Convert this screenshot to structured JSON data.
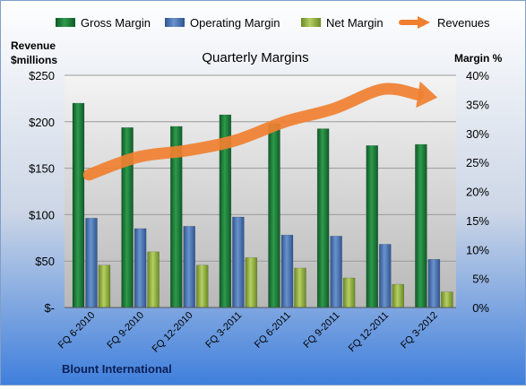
{
  "company": "Blount International",
  "colors": {
    "gross": "#1f7a3a",
    "operating": "#4a73b0",
    "net": "#8fae3d",
    "revenue": "#f08030"
  },
  "chart_data": {
    "type": "bar",
    "title": "Quarterly Margins",
    "left_axis_label_line1": "Revenue",
    "left_axis_label_line2": "$millions",
    "right_axis_label": "Margin %",
    "categories": [
      "FQ 6-2010",
      "FQ 9-2010",
      "FQ 12-2010",
      "FQ 3-2011",
      "FQ 6-2011",
      "FQ 9-2011",
      "FQ 12-2011",
      "FQ 3-2012"
    ],
    "left_ticks": [
      "$-",
      "$50",
      "$100",
      "$150",
      "$200",
      "$250"
    ],
    "right_ticks": [
      "0%",
      "5%",
      "10%",
      "15%",
      "20%",
      "25%",
      "30%",
      "35%",
      "40%"
    ],
    "ylim_left": [
      0,
      250
    ],
    "ylim_right": [
      0,
      40
    ],
    "grid": true,
    "legend_position": "top",
    "series": [
      {
        "name": "Gross Margin",
        "kind": "bar",
        "axis": "right",
        "values": [
          35.2,
          31.0,
          31.2,
          33.2,
          31.7,
          30.8,
          27.9,
          28.1
        ]
      },
      {
        "name": "Operating Margin",
        "kind": "bar",
        "axis": "right",
        "values": [
          15.4,
          13.6,
          14.0,
          15.6,
          12.5,
          12.3,
          10.9,
          8.3
        ]
      },
      {
        "name": "Net Margin",
        "kind": "bar",
        "axis": "right",
        "values": [
          7.3,
          9.6,
          7.3,
          8.6,
          6.8,
          5.1,
          4.0,
          2.7
        ]
      },
      {
        "name": "Revenues",
        "kind": "arrow",
        "axis": "left",
        "values": [
          143,
          162,
          169,
          180,
          200,
          214,
          235,
          227
        ]
      }
    ]
  }
}
